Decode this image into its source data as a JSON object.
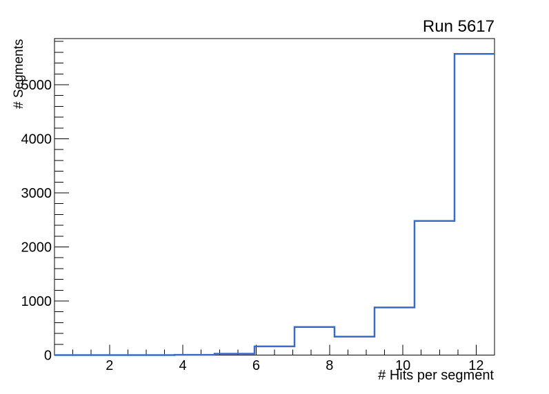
{
  "title": "Run 5617",
  "chart_data": {
    "type": "histogram-step",
    "title": "Run 5617",
    "xlabel": "# Hits per segment",
    "ylabel": "# Segments",
    "xlim": [
      0.5,
      12.5
    ],
    "ylim": [
      0,
      5854
    ],
    "x_major_ticks": [
      2,
      4,
      6,
      8,
      10,
      12
    ],
    "x_minor_tick_step": 0.5,
    "y_major_ticks": [
      0,
      1000,
      2000,
      3000,
      4000,
      5000
    ],
    "y_minor_tick_step": 200,
    "bin_edges": [
      0.5,
      1.591,
      2.682,
      3.773,
      4.864,
      5.955,
      7.045,
      8.136,
      9.227,
      10.318,
      11.409,
      12.5
    ],
    "counts": [
      0,
      0,
      0,
      5,
      25,
      160,
      520,
      340,
      880,
      2480,
      5570
    ],
    "grid": false,
    "legend": null,
    "line_color": "#3a6ac4",
    "frame_color": "#000000",
    "background_color": "#ffffff"
  }
}
